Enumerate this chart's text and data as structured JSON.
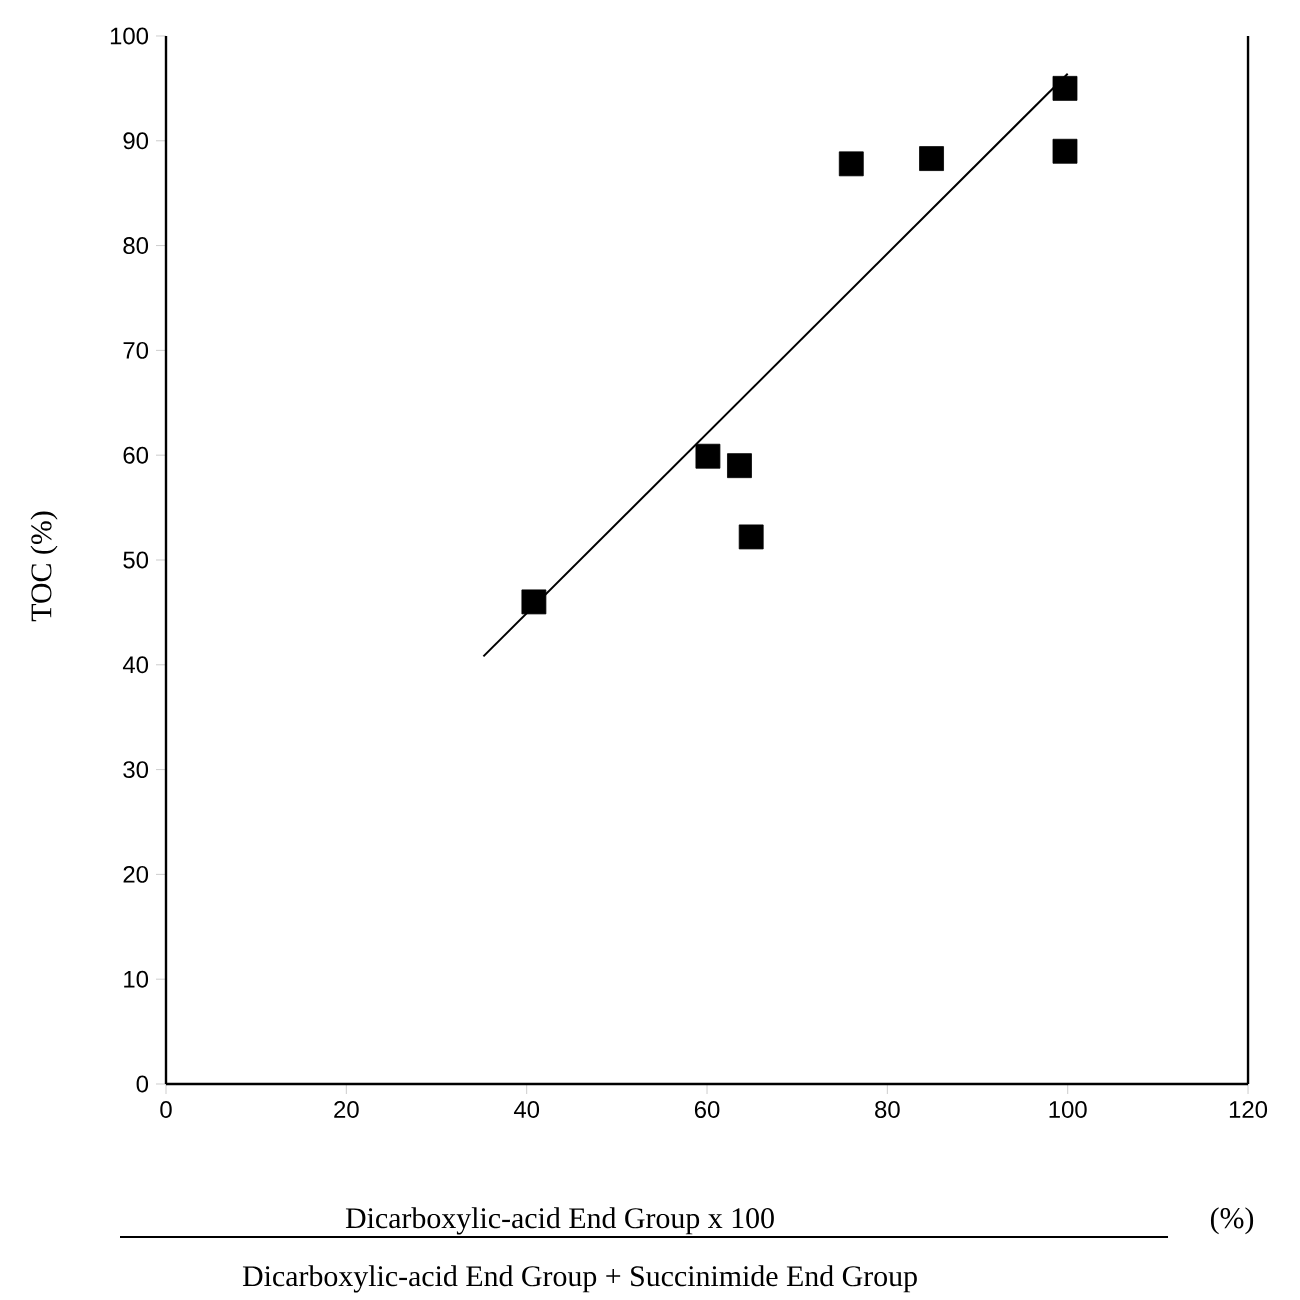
{
  "chart_data": {
    "type": "scatter",
    "xlabel": "Dicarboxylic-acid End Group x 100",
    "ylabel": "TOC (%)",
    "annotations": [
      "Dicarboxylic-acid End Group + Succinimide End Group",
      "(%)"
    ],
    "series": [
      {
        "color": "#000000",
        "marker": "square",
        "x": [
          40.8,
          60.1,
          63.6,
          64.9,
          76.0,
          84.9,
          99.7,
          99.7
        ],
        "values": [
          46.0,
          59.9,
          59.0,
          52.2,
          87.8,
          88.3,
          95.0,
          89.0
        ]
      },
      {
        "type": "line",
        "color": "#000000",
        "marker": "none",
        "line_style": "solid",
        "x": [
          35.2,
          100
        ],
        "values": [
          40.8,
          96.4
        ]
      }
    ],
    "xlim": [
      0,
      120
    ],
    "ylim": [
      0,
      100
    ],
    "xticks": [
      0,
      20,
      40,
      60,
      80,
      100,
      120
    ],
    "yticks": [
      0,
      10,
      20,
      30,
      40,
      50,
      60,
      70,
      80,
      90,
      100
    ],
    "grid": false
  }
}
